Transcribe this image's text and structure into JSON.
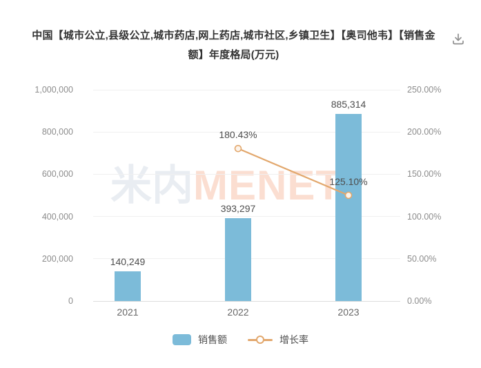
{
  "header": {
    "title": "中国【城市公立,县级公立,城市药店,网上药店,城市社区,乡镇卫生】【奥司他韦】【销售金额】年度格局(万元)"
  },
  "watermark": {
    "part1": "米内",
    "part2": "MENET"
  },
  "colors": {
    "bar": "#7cbbd9",
    "line": "#e2a76c",
    "marker_fill": "#fdf4eb",
    "title_text": "#333333",
    "axis_text": "#8c8c8c",
    "data_label_text": "#4d4d4d",
    "gridline": "#f0f0f0",
    "axis_line": "#dcdcdc",
    "download_icon": "#909090"
  },
  "legend": {
    "items": [
      {
        "label": "销售额",
        "type": "bar"
      },
      {
        "label": "增长率",
        "type": "line"
      }
    ]
  },
  "chart_data": {
    "type": "bar",
    "title": "中国【城市公立,县级公立,城市药店,网上药店,城市社区,乡镇卫生】【奥司他韦】【销售金额】年度格局(万元)",
    "categories": [
      "2021",
      "2022",
      "2023"
    ],
    "series": [
      {
        "name": "销售额",
        "type": "bar",
        "axis": "left",
        "values": [
          140249,
          393297,
          885314
        ],
        "labels": [
          "140,249",
          "393,297",
          "885,314"
        ]
      },
      {
        "name": "增长率",
        "type": "line",
        "axis": "right",
        "values": [
          null,
          180.43,
          125.1
        ],
        "labels": [
          null,
          "180.43%",
          "125.10%"
        ]
      }
    ],
    "y_left": {
      "min": 0,
      "max": 1000000,
      "ticks": [
        "0",
        "200,000",
        "400,000",
        "600,000",
        "800,000",
        "1,000,000"
      ]
    },
    "y_right": {
      "min": 0,
      "max": 250,
      "ticks": [
        "0.00%",
        "50.00%",
        "100.00%",
        "150.00%",
        "200.00%",
        "250.00%"
      ]
    },
    "grid": true,
    "legend_position": "bottom",
    "unit": "万元"
  }
}
